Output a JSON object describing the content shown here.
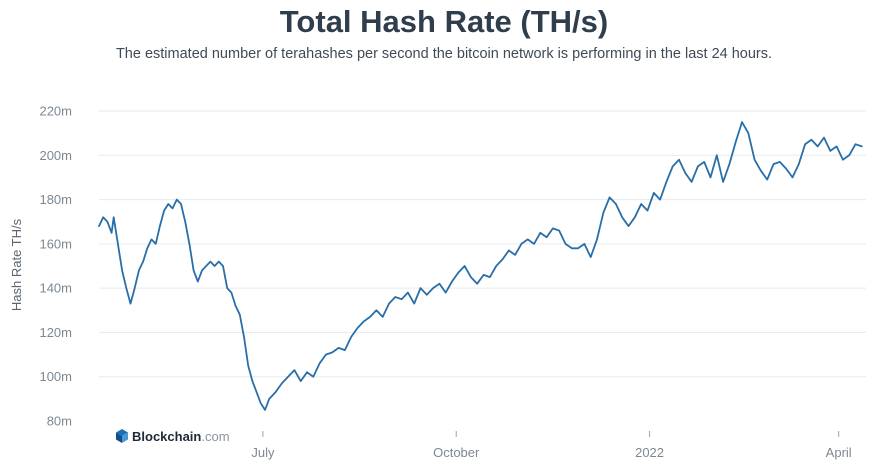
{
  "title": "Total Hash Rate (TH/s)",
  "subtitle": "The estimated number of terahashes per second the bitcoin network is performing in the last 24 hours.",
  "brand": {
    "name": "Blockchain",
    "domain": ".com",
    "icon": "blockchain-logo-icon"
  },
  "colors": {
    "line": "#2a6ea8",
    "grid": "#e7eaee",
    "text": "#2f3d4c",
    "axis": "#7d8893"
  },
  "chart_data": {
    "type": "line",
    "title": "Total Hash Rate (TH/s)",
    "xlabel": "",
    "ylabel": "Hash Rate TH/s",
    "ylim": [
      80,
      220
    ],
    "yticks": [
      80,
      100,
      120,
      140,
      160,
      180,
      200,
      220
    ],
    "ytick_labels": [
      "80m",
      "100m",
      "120m",
      "140m",
      "160m",
      "180m",
      "200m",
      "220m"
    ],
    "xlim": [
      "2021-04-14",
      "2022-04-14"
    ],
    "xticks": [
      {
        "x": "2021-07-01",
        "label": "July"
      },
      {
        "x": "2021-10-01",
        "label": "October"
      },
      {
        "x": "2022-01-01",
        "label": "2022"
      },
      {
        "x": "2022-04-01",
        "label": "April"
      }
    ],
    "grid": true,
    "legend": "none",
    "series": [
      {
        "points": [
          [
            "2021-04-14",
            168
          ],
          [
            "2021-04-16",
            172
          ],
          [
            "2021-04-18",
            170
          ],
          [
            "2021-04-20",
            165
          ],
          [
            "2021-04-21",
            172
          ],
          [
            "2021-04-23",
            160
          ],
          [
            "2021-04-25",
            148
          ],
          [
            "2021-04-27",
            140
          ],
          [
            "2021-04-29",
            133
          ],
          [
            "2021-05-01",
            140
          ],
          [
            "2021-05-03",
            148
          ],
          [
            "2021-05-05",
            152
          ],
          [
            "2021-05-07",
            158
          ],
          [
            "2021-05-09",
            162
          ],
          [
            "2021-05-11",
            160
          ],
          [
            "2021-05-13",
            168
          ],
          [
            "2021-05-15",
            175
          ],
          [
            "2021-05-17",
            178
          ],
          [
            "2021-05-19",
            176
          ],
          [
            "2021-05-21",
            180
          ],
          [
            "2021-05-23",
            178
          ],
          [
            "2021-05-25",
            170
          ],
          [
            "2021-05-27",
            160
          ],
          [
            "2021-05-29",
            148
          ],
          [
            "2021-05-31",
            143
          ],
          [
            "2021-06-02",
            148
          ],
          [
            "2021-06-04",
            150
          ],
          [
            "2021-06-06",
            152
          ],
          [
            "2021-06-08",
            150
          ],
          [
            "2021-06-10",
            152
          ],
          [
            "2021-06-12",
            150
          ],
          [
            "2021-06-14",
            140
          ],
          [
            "2021-06-16",
            138
          ],
          [
            "2021-06-18",
            132
          ],
          [
            "2021-06-20",
            128
          ],
          [
            "2021-06-22",
            118
          ],
          [
            "2021-06-24",
            105
          ],
          [
            "2021-06-26",
            98
          ],
          [
            "2021-06-28",
            93
          ],
          [
            "2021-06-30",
            88
          ],
          [
            "2021-07-02",
            85
          ],
          [
            "2021-07-04",
            90
          ],
          [
            "2021-07-07",
            93
          ],
          [
            "2021-07-10",
            97
          ],
          [
            "2021-07-13",
            100
          ],
          [
            "2021-07-16",
            103
          ],
          [
            "2021-07-19",
            98
          ],
          [
            "2021-07-22",
            102
          ],
          [
            "2021-07-25",
            100
          ],
          [
            "2021-07-28",
            106
          ],
          [
            "2021-07-31",
            110
          ],
          [
            "2021-08-03",
            111
          ],
          [
            "2021-08-06",
            113
          ],
          [
            "2021-08-09",
            112
          ],
          [
            "2021-08-12",
            118
          ],
          [
            "2021-08-15",
            122
          ],
          [
            "2021-08-18",
            125
          ],
          [
            "2021-08-21",
            127
          ],
          [
            "2021-08-24",
            130
          ],
          [
            "2021-08-27",
            127
          ],
          [
            "2021-08-30",
            133
          ],
          [
            "2021-09-02",
            136
          ],
          [
            "2021-09-05",
            135
          ],
          [
            "2021-09-08",
            138
          ],
          [
            "2021-09-11",
            133
          ],
          [
            "2021-09-14",
            140
          ],
          [
            "2021-09-17",
            137
          ],
          [
            "2021-09-20",
            140
          ],
          [
            "2021-09-23",
            142
          ],
          [
            "2021-09-26",
            138
          ],
          [
            "2021-09-29",
            143
          ],
          [
            "2021-10-02",
            147
          ],
          [
            "2021-10-05",
            150
          ],
          [
            "2021-10-08",
            145
          ],
          [
            "2021-10-11",
            142
          ],
          [
            "2021-10-14",
            146
          ],
          [
            "2021-10-17",
            145
          ],
          [
            "2021-10-20",
            150
          ],
          [
            "2021-10-23",
            153
          ],
          [
            "2021-10-26",
            157
          ],
          [
            "2021-10-29",
            155
          ],
          [
            "2021-11-01",
            160
          ],
          [
            "2021-11-04",
            162
          ],
          [
            "2021-11-07",
            160
          ],
          [
            "2021-11-10",
            165
          ],
          [
            "2021-11-13",
            163
          ],
          [
            "2021-11-16",
            167
          ],
          [
            "2021-11-19",
            166
          ],
          [
            "2021-11-22",
            160
          ],
          [
            "2021-11-25",
            158
          ],
          [
            "2021-11-28",
            158
          ],
          [
            "2021-12-01",
            160
          ],
          [
            "2021-12-04",
            154
          ],
          [
            "2021-12-07",
            162
          ],
          [
            "2021-12-10",
            174
          ],
          [
            "2021-12-13",
            181
          ],
          [
            "2021-12-16",
            178
          ],
          [
            "2021-12-19",
            172
          ],
          [
            "2021-12-22",
            168
          ],
          [
            "2021-12-25",
            172
          ],
          [
            "2021-12-28",
            178
          ],
          [
            "2021-12-31",
            175
          ],
          [
            "2022-01-03",
            183
          ],
          [
            "2022-01-06",
            180
          ],
          [
            "2022-01-09",
            188
          ],
          [
            "2022-01-12",
            195
          ],
          [
            "2022-01-15",
            198
          ],
          [
            "2022-01-18",
            192
          ],
          [
            "2022-01-21",
            188
          ],
          [
            "2022-01-24",
            195
          ],
          [
            "2022-01-27",
            197
          ],
          [
            "2022-01-30",
            190
          ],
          [
            "2022-02-02",
            200
          ],
          [
            "2022-02-05",
            188
          ],
          [
            "2022-02-08",
            196
          ],
          [
            "2022-02-11",
            206
          ],
          [
            "2022-02-14",
            215
          ],
          [
            "2022-02-17",
            210
          ],
          [
            "2022-02-20",
            198
          ],
          [
            "2022-02-23",
            193
          ],
          [
            "2022-02-26",
            189
          ],
          [
            "2022-03-01",
            196
          ],
          [
            "2022-03-04",
            197
          ],
          [
            "2022-03-07",
            194
          ],
          [
            "2022-03-10",
            190
          ],
          [
            "2022-03-13",
            196
          ],
          [
            "2022-03-16",
            205
          ],
          [
            "2022-03-19",
            207
          ],
          [
            "2022-03-22",
            204
          ],
          [
            "2022-03-25",
            208
          ],
          [
            "2022-03-28",
            202
          ],
          [
            "2022-03-31",
            204
          ],
          [
            "2022-04-03",
            198
          ],
          [
            "2022-04-06",
            200
          ],
          [
            "2022-04-09",
            205
          ],
          [
            "2022-04-12",
            204
          ]
        ]
      }
    ]
  }
}
